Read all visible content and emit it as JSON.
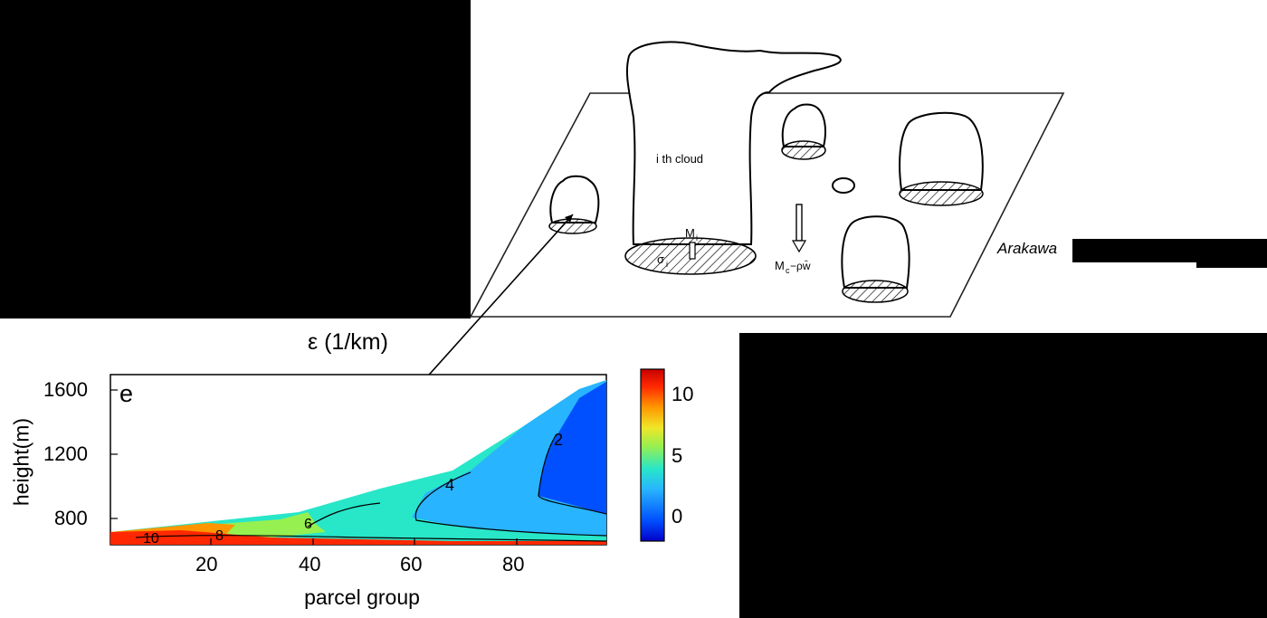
{
  "citation": "Arakawa",
  "diagram": {
    "cloud_label": "i th  cloud",
    "mass_flux_label": "M",
    "mass_flux_sub": "i",
    "area_label": "σ",
    "area_sub": "i",
    "subsidence_label": "M",
    "subsidence_sub": "c",
    "subsidence_rest": " −ρw̄"
  },
  "chart_data": {
    "type": "heatmap",
    "title": "ε (1/km)",
    "panel_label": "e",
    "xlabel": "parcel group",
    "ylabel": "height(m)",
    "x_ticks": [
      "20",
      "40",
      "60",
      "80"
    ],
    "y_ticks": [
      "1600",
      "1200",
      "800"
    ],
    "xlim": [
      0,
      97
    ],
    "ylim": [
      630,
      1700
    ],
    "colorbar": {
      "ticks": [
        "10",
        "5",
        "0"
      ],
      "range": [
        -1.5,
        12
      ],
      "colors": [
        "#0000c8",
        "#0050ff",
        "#28b4ff",
        "#28e6c8",
        "#96f050",
        "#f0e628",
        "#ff9600",
        "#ff2800",
        "#c80000"
      ]
    },
    "contour_labels": [
      "2",
      "4",
      "6",
      "8",
      "10"
    ],
    "cloud_top_height": [
      [
        2,
        730
      ],
      [
        30,
        770
      ],
      [
        45,
        860
      ],
      [
        60,
        960
      ],
      [
        70,
        1080
      ],
      [
        80,
        1300
      ],
      [
        89,
        1550
      ],
      [
        97,
        1680
      ]
    ]
  }
}
